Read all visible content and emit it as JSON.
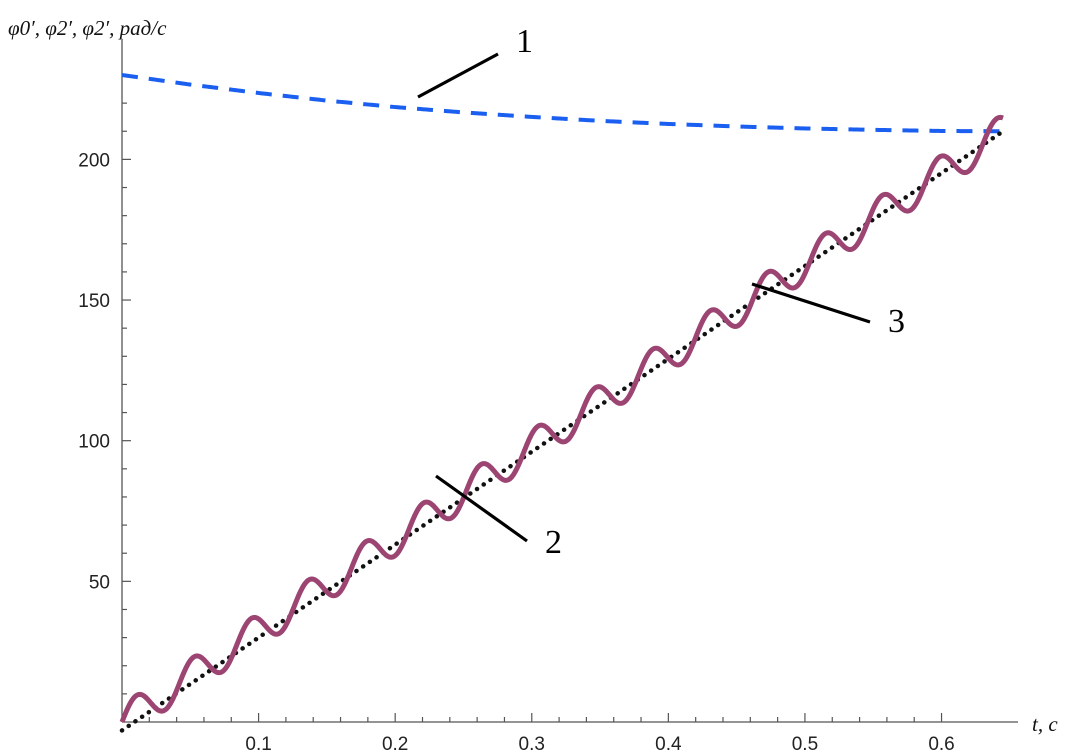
{
  "chart_data": {
    "type": "line",
    "title": "",
    "xlabel": "t, c",
    "ylabel": "φ0′, φ2′, φ2′, рад/с",
    "xlim": [
      0,
      0.645
    ],
    "ylim": [
      0,
      230
    ],
    "x_ticks": [
      "0.1",
      "0.2",
      "0.3",
      "0.4",
      "0.5",
      "0.6"
    ],
    "y_ticks": [
      "50",
      "100",
      "150",
      "200"
    ],
    "grid": false,
    "legend": "none",
    "series": [
      {
        "label": "1",
        "style": "dashed",
        "color": "#1a5ff0",
        "x": [
          0,
          0.05,
          0.1,
          0.15,
          0.2,
          0.25,
          0.3,
          0.35,
          0.4,
          0.45,
          0.5,
          0.55,
          0.6,
          0.645
        ],
        "y": [
          230,
          226.6,
          223.6,
          220.9,
          218.6,
          216.7,
          215.1,
          213.7,
          212.6,
          211.7,
          211.0,
          210.5,
          210.1,
          210.0
        ]
      },
      {
        "label": "2",
        "style": "dotted",
        "color": "#111111",
        "x": [
          0,
          0.645
        ],
        "y": [
          -3,
          210
        ]
      },
      {
        "label": "3",
        "style": "solid",
        "color": "#9c4472",
        "x": [
          0,
          0.645
        ],
        "y": [
          0,
          210
        ],
        "oscillation_amplitude": 6,
        "oscillation_period": 0.042
      }
    ]
  }
}
